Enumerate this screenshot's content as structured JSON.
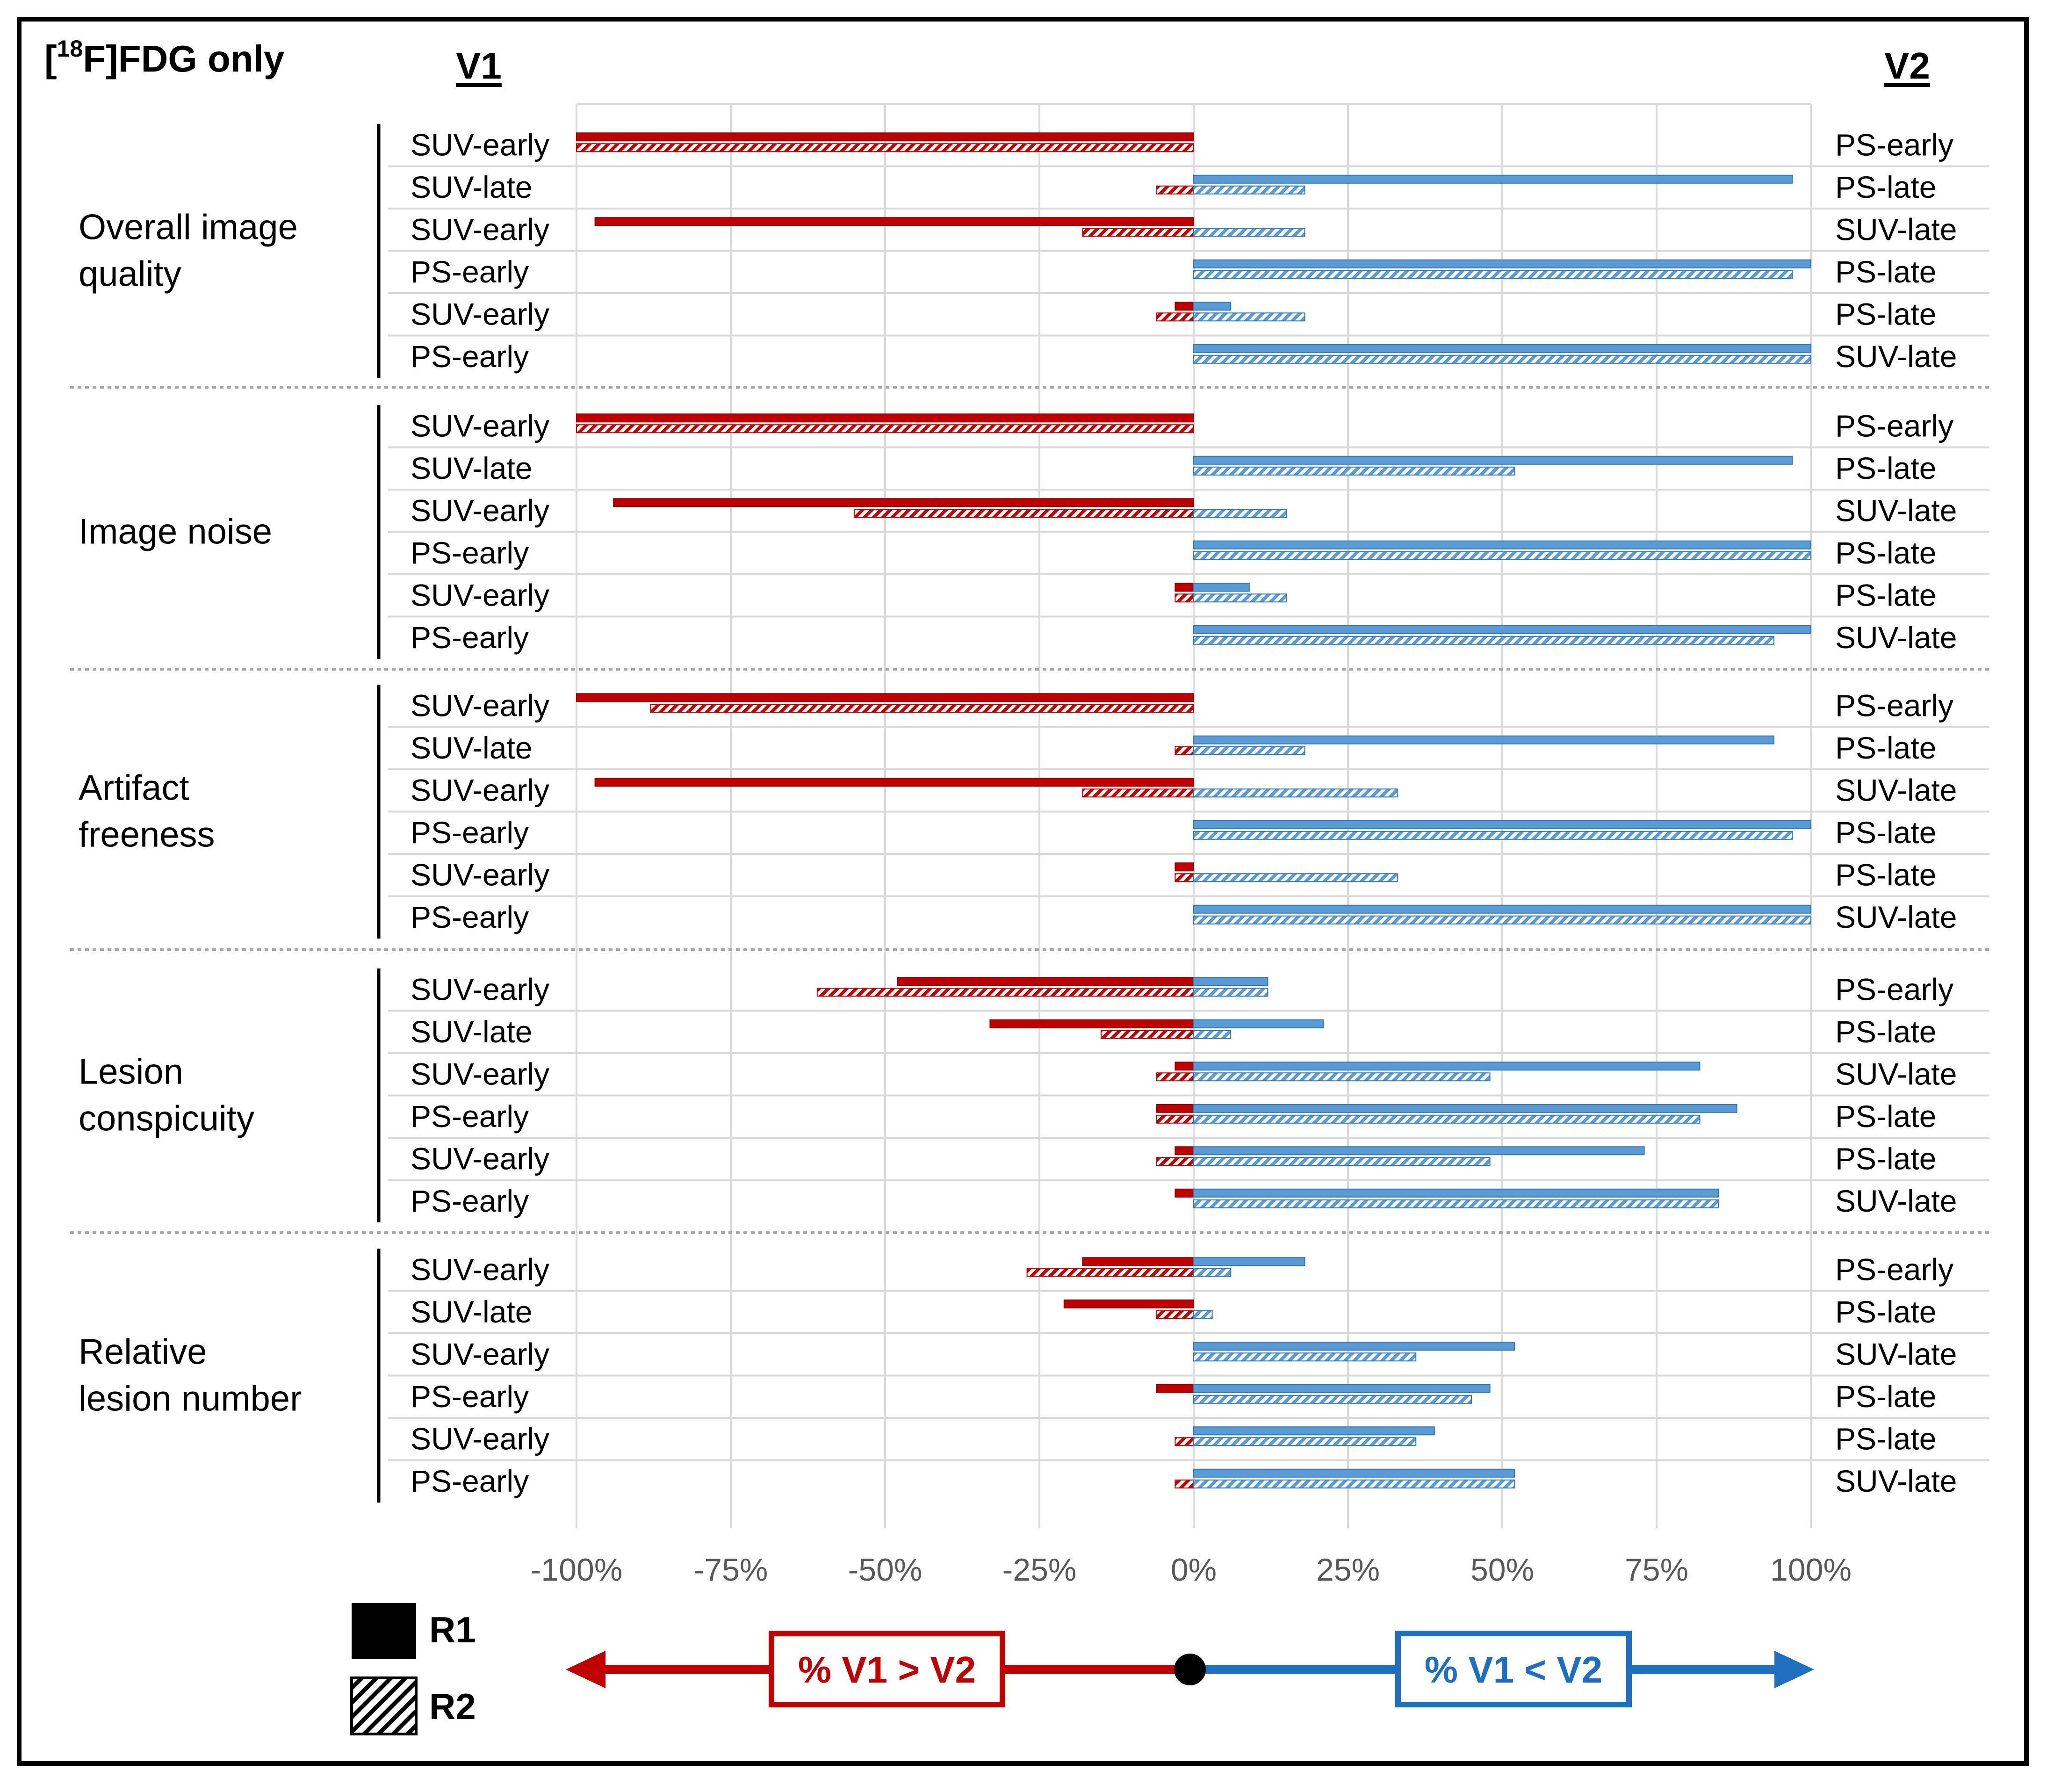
{
  "title": {
    "pre": "[",
    "sup": "18",
    "post": "F]FDG only"
  },
  "header_left": "V1",
  "header_right": "V2",
  "legend": {
    "r1": "R1",
    "r2": "R2"
  },
  "direction": {
    "left_label": "% V1 > V2",
    "right_label": "% V1 < V2"
  },
  "colors": {
    "red": "#C00000",
    "blue": "#5B9BD5",
    "blue_dark": "#1F6FC0"
  },
  "chart_data": {
    "type": "bar",
    "orientation": "horizontal",
    "xlim": [
      -100,
      100
    ],
    "x_ticks": [
      "-100%",
      "-75%",
      "-50%",
      "-25%",
      "0%",
      "25%",
      "50%",
      "75%",
      "100%"
    ],
    "series_names": [
      "R1",
      "R2"
    ],
    "groups": [
      {
        "name": [
          "Overall image",
          "quality"
        ],
        "rows": [
          {
            "v1": "SUV-early",
            "v2": "PS-early",
            "r1": [
              -100,
              0
            ],
            "r2": [
              -100,
              0
            ]
          },
          {
            "v1": "SUV-late",
            "v2": "PS-late",
            "r1": [
              0,
              97
            ],
            "r2": [
              -6,
              18
            ]
          },
          {
            "v1": "SUV-early",
            "v2": "SUV-late",
            "r1": [
              -97,
              0
            ],
            "r2": [
              -18,
              18
            ]
          },
          {
            "v1": "PS-early",
            "v2": "PS-late",
            "r1": [
              0,
              100
            ],
            "r2": [
              0,
              97
            ]
          },
          {
            "v1": "SUV-early",
            "v2": "PS-late",
            "r1": [
              -3,
              6
            ],
            "r2": [
              -6,
              18
            ]
          },
          {
            "v1": "PS-early",
            "v2": "SUV-late",
            "r1": [
              0,
              100
            ],
            "r2": [
              0,
              100
            ]
          }
        ]
      },
      {
        "name": [
          "Image noise"
        ],
        "rows": [
          {
            "v1": "SUV-early",
            "v2": "PS-early",
            "r1": [
              -100,
              0
            ],
            "r2": [
              -100,
              0
            ]
          },
          {
            "v1": "SUV-late",
            "v2": "PS-late",
            "r1": [
              0,
              97
            ],
            "r2": [
              0,
              52
            ]
          },
          {
            "v1": "SUV-early",
            "v2": "SUV-late",
            "r1": [
              -94,
              0
            ],
            "r2": [
              -55,
              15
            ]
          },
          {
            "v1": "PS-early",
            "v2": "PS-late",
            "r1": [
              0,
              100
            ],
            "r2": [
              0,
              100
            ]
          },
          {
            "v1": "SUV-early",
            "v2": "PS-late",
            "r1": [
              -3,
              9
            ],
            "r2": [
              -3,
              15
            ]
          },
          {
            "v1": "PS-early",
            "v2": "SUV-late",
            "r1": [
              0,
              100
            ],
            "r2": [
              0,
              94
            ]
          }
        ]
      },
      {
        "name": [
          "Artifact",
          "freeness"
        ],
        "rows": [
          {
            "v1": "SUV-early",
            "v2": "PS-early",
            "r1": [
              -100,
              0
            ],
            "r2": [
              -88,
              0
            ]
          },
          {
            "v1": "SUV-late",
            "v2": "PS-late",
            "r1": [
              0,
              94
            ],
            "r2": [
              -3,
              18
            ]
          },
          {
            "v1": "SUV-early",
            "v2": "SUV-late",
            "r1": [
              -97,
              0
            ],
            "r2": [
              -18,
              33
            ]
          },
          {
            "v1": "PS-early",
            "v2": "PS-late",
            "r1": [
              0,
              100
            ],
            "r2": [
              0,
              97
            ]
          },
          {
            "v1": "SUV-early",
            "v2": "PS-late",
            "r1": [
              -3,
              0
            ],
            "r2": [
              -3,
              33
            ]
          },
          {
            "v1": "PS-early",
            "v2": "SUV-late",
            "r1": [
              0,
              100
            ],
            "r2": [
              0,
              100
            ]
          }
        ]
      },
      {
        "name": [
          "Lesion",
          "conspicuity"
        ],
        "rows": [
          {
            "v1": "SUV-early",
            "v2": "PS-early",
            "r1": [
              -48,
              12
            ],
            "r2": [
              -61,
              12
            ]
          },
          {
            "v1": "SUV-late",
            "v2": "PS-late",
            "r1": [
              -33,
              21
            ],
            "r2": [
              -15,
              6
            ]
          },
          {
            "v1": "SUV-early",
            "v2": "SUV-late",
            "r1": [
              -3,
              82
            ],
            "r2": [
              -6,
              48
            ]
          },
          {
            "v1": "PS-early",
            "v2": "PS-late",
            "r1": [
              -6,
              88
            ],
            "r2": [
              -6,
              82
            ]
          },
          {
            "v1": "SUV-early",
            "v2": "PS-late",
            "r1": [
              -3,
              73
            ],
            "r2": [
              -6,
              48
            ]
          },
          {
            "v1": "PS-early",
            "v2": "SUV-late",
            "r1": [
              -3,
              85
            ],
            "r2": [
              0,
              85
            ]
          }
        ]
      },
      {
        "name": [
          "Relative",
          "lesion number"
        ],
        "rows": [
          {
            "v1": "SUV-early",
            "v2": "PS-early",
            "r1": [
              -18,
              18
            ],
            "r2": [
              -27,
              6
            ]
          },
          {
            "v1": "SUV-late",
            "v2": "PS-late",
            "r1": [
              -21,
              0
            ],
            "r2": [
              -6,
              3
            ]
          },
          {
            "v1": "SUV-early",
            "v2": "SUV-late",
            "r1": [
              0,
              52
            ],
            "r2": [
              0,
              36
            ]
          },
          {
            "v1": "PS-early",
            "v2": "PS-late",
            "r1": [
              -6,
              48
            ],
            "r2": [
              0,
              45
            ]
          },
          {
            "v1": "SUV-early",
            "v2": "PS-late",
            "r1": [
              0,
              39
            ],
            "r2": [
              -3,
              36
            ]
          },
          {
            "v1": "PS-early",
            "v2": "SUV-late",
            "r1": [
              0,
              52
            ],
            "r2": [
              -3,
              52
            ]
          }
        ]
      }
    ]
  }
}
